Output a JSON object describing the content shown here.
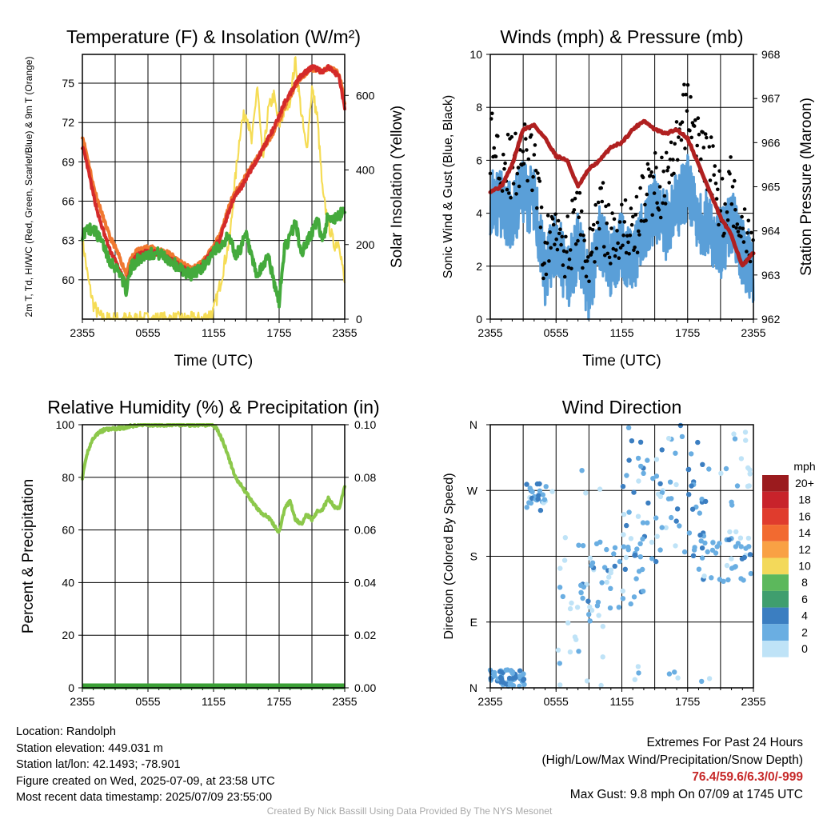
{
  "colors": {
    "red": "#d42a2a",
    "orange": "#f07830",
    "green": "#44aa3c",
    "yellow": "#f5dc55",
    "blue": "#5a9fd8",
    "black": "#000000",
    "maroon": "#b02020",
    "rh": "#8cc84b",
    "precip": "#3aa035"
  },
  "chart_data": [
    {
      "id": "temperature",
      "type": "line",
      "title": "Temperature (F) & Insolation (W/m²)",
      "xlabel": "Time (UTC)",
      "ylabel": "2m T, Td, HI/WC (Red, Green, Scarlet/Blue) & 9m T (Orange)",
      "ylabel_right": "Solar Insolation (Yellow)",
      "xticks": [
        "2355",
        "0555",
        "1155",
        "1755",
        "2355"
      ],
      "ylim": [
        57,
        77.2
      ],
      "yticks": [
        60,
        63,
        66,
        69,
        72,
        75
      ],
      "ylim_right": [
        0,
        710
      ],
      "yticks_right": [
        0,
        200,
        400,
        600
      ],
      "x_hours": [
        0,
        0.5,
        1,
        1.5,
        2,
        2.5,
        3,
        3.5,
        4,
        4.5,
        5,
        6,
        7,
        8,
        9,
        10,
        11,
        12,
        12.5,
        13,
        13.5,
        14,
        14.5,
        15,
        15.5,
        16,
        16.5,
        17,
        17.5,
        18,
        18.5,
        19,
        19.5,
        20,
        20.5,
        21,
        21.5,
        22,
        22.5,
        23,
        23.5,
        24
      ],
      "series": [
        {
          "key": "temp_2m",
          "color": "red",
          "values": [
            70.2,
            68.5,
            66.5,
            64.8,
            63.5,
            62.3,
            61.5,
            60.5,
            59.6,
            61.2,
            61.8,
            62.2,
            62.0,
            61.7,
            61.0,
            60.6,
            61.2,
            62.3,
            63.0,
            64.2,
            65.5,
            66.5,
            67.0,
            67.8,
            68.5,
            69.2,
            70.0,
            70.8,
            71.5,
            72.5,
            73.5,
            74.2,
            75.0,
            75.6,
            75.9,
            76.2,
            76.1,
            75.8,
            76.2,
            75.9,
            75.5,
            73.0
          ]
        },
        {
          "key": "temp_9m",
          "color": "orange",
          "values": [
            71.0,
            69.2,
            67.2,
            65.8,
            64.5,
            63.3,
            62.5,
            61.5,
            60.5,
            61.7,
            62.2,
            62.5,
            62.3,
            62.0,
            61.3,
            60.8,
            61.4,
            62.5,
            63.3,
            64.5,
            65.8,
            66.8,
            67.2,
            68.0,
            68.7,
            69.3,
            70.0,
            70.6,
            71.3,
            72.2,
            73.2,
            74.0,
            74.8,
            75.4,
            75.8,
            76.1,
            76.0,
            75.9,
            76.2,
            76.0,
            75.7,
            73.5
          ]
        },
        {
          "key": "dewpoint",
          "color": "green",
          "values": [
            63.5,
            63.8,
            64.0,
            63.2,
            62.5,
            61.5,
            61.0,
            60.5,
            59.2,
            61.0,
            61.5,
            62.0,
            62.0,
            61.5,
            60.8,
            60.4,
            61.0,
            62.0,
            62.6,
            63.0,
            63.3,
            61.8,
            62.5,
            63.4,
            61.5,
            60.2,
            61.0,
            62.0,
            59.8,
            58.3,
            62.5,
            63.2,
            64.5,
            62.0,
            62.8,
            63.6,
            64.5,
            63.0,
            65.0,
            64.6,
            64.8,
            65.5
          ]
        },
        {
          "key": "insolation",
          "color": "yellow",
          "axis": "right",
          "values": [
            220,
            110,
            40,
            10,
            0,
            0,
            0,
            0,
            0,
            0,
            0,
            0,
            0,
            0,
            0,
            0,
            0,
            20,
            80,
            150,
            220,
            380,
            520,
            560,
            470,
            630,
            420,
            560,
            600,
            520,
            560,
            590,
            695,
            560,
            450,
            620,
            540,
            330,
            260,
            200,
            210,
            90
          ]
        }
      ]
    },
    {
      "id": "winds",
      "type": "line",
      "title": "Winds (mph) & Pressure (mb)",
      "xlabel": "Time (UTC)",
      "ylabel": "Sonic Wind & Gust (Blue, Black)",
      "ylabel_right": "Station Pressure (Maroon)",
      "xticks": [
        "2355",
        "0555",
        "1155",
        "1755",
        "2355"
      ],
      "ylim": [
        0,
        10
      ],
      "yticks": [
        0,
        2,
        4,
        6,
        8,
        10
      ],
      "ylim_right": [
        962,
        968
      ],
      "yticks_right": [
        962,
        963,
        964,
        965,
        966,
        967,
        968
      ],
      "x_hours": [
        0,
        1,
        2,
        3,
        4,
        5,
        6,
        7,
        8,
        9,
        10,
        11,
        12,
        13,
        14,
        15,
        16,
        17,
        18,
        19,
        20,
        21,
        22,
        23,
        24
      ],
      "series": [
        {
          "key": "wind",
          "color": "blue",
          "values": [
            4.5,
            4.3,
            3.8,
            4.7,
            4.4,
            1.8,
            3.0,
            1.5,
            2.8,
            1.0,
            3.2,
            2.0,
            2.8,
            2.0,
            3.5,
            4.2,
            3.5,
            4.2,
            5.0,
            3.8,
            3.5,
            2.8,
            3.7,
            2.5,
            1.8
          ]
        },
        {
          "key": "gust",
          "color": "black",
          "values": [
            6.8,
            6.2,
            5.6,
            6.3,
            5.8,
            2.2,
            4.0,
            2.6,
            3.9,
            2.0,
            4.4,
            2.8,
            3.8,
            3.1,
            4.6,
            5.2,
            5.0,
            6.2,
            8.2,
            6.5,
            6.0,
            4.2,
            5.0,
            3.5,
            2.8
          ]
        },
        {
          "key": "pressure",
          "color": "maroon",
          "axis": "right",
          "values": [
            964.9,
            965.0,
            965.5,
            966.3,
            966.4,
            966.1,
            965.7,
            965.6,
            965.0,
            965.4,
            965.6,
            965.9,
            966.0,
            966.3,
            966.5,
            966.3,
            966.2,
            966.3,
            966.1,
            965.5,
            964.9,
            964.3,
            963.9,
            963.2,
            963.5
          ]
        }
      ]
    },
    {
      "id": "humidity",
      "type": "line",
      "title": "Relative Humidity (%) & Precipitation (in)",
      "ylabel": "Percent & Precipitation",
      "xticks": [
        "2355",
        "0555",
        "1155",
        "1755",
        "2355"
      ],
      "ylim": [
        0,
        100
      ],
      "yticks": [
        0,
        20,
        40,
        60,
        80,
        100
      ],
      "ylim_right": [
        0,
        0.1
      ],
      "yticks_right": [
        "0.00",
        "0.02",
        "0.04",
        "0.06",
        "0.08",
        "0.10"
      ],
      "x_hours": [
        0,
        0.5,
        1,
        1.5,
        2,
        3,
        4,
        5,
        6,
        7,
        8,
        9,
        10,
        11,
        12,
        12.5,
        13,
        13.5,
        14,
        14.5,
        15,
        15.5,
        16,
        16.5,
        17,
        17.5,
        18,
        18.5,
        19,
        19.5,
        20,
        20.5,
        21,
        21.5,
        22,
        22.5,
        23,
        23.5,
        24
      ],
      "series": [
        {
          "key": "rh",
          "color": "rh",
          "values": [
            80,
            90,
            95,
            97,
            98,
            98.5,
            99,
            100,
            100,
            100,
            100,
            100,
            100,
            100,
            100,
            97,
            92,
            86,
            80,
            77,
            74,
            71,
            68,
            66,
            65,
            62,
            59,
            68,
            71,
            64,
            62,
            66,
            64,
            67,
            68,
            72,
            69,
            68,
            77
          ]
        },
        {
          "key": "precip",
          "color": "precip",
          "axis": "right",
          "values": [
            0,
            0,
            0,
            0,
            0,
            0,
            0,
            0,
            0,
            0,
            0,
            0,
            0,
            0,
            0,
            0,
            0,
            0,
            0,
            0,
            0,
            0,
            0,
            0,
            0,
            0,
            0,
            0,
            0,
            0,
            0,
            0,
            0,
            0,
            0,
            0,
            0,
            0,
            0
          ]
        }
      ]
    },
    {
      "id": "wind_direction",
      "type": "scatter",
      "title": "Wind Direction",
      "ylabel": "Direction (Colored By Speed)",
      "xticks": [
        "2355",
        "0555",
        "1155",
        "1755",
        "2355"
      ],
      "yticks": [
        "N",
        "E",
        "S",
        "W",
        "N"
      ],
      "ylim": [
        0,
        360
      ],
      "legend_title": "mph",
      "legend_labels": [
        "20+",
        "18",
        "16",
        "14",
        "12",
        "10",
        "8",
        "6",
        "4",
        "2",
        "0"
      ],
      "legend_colors": [
        "#9b1b1e",
        "#c8232b",
        "#e03c2d",
        "#f26a30",
        "#f9a144",
        "#f3d95a",
        "#5cb85c",
        "#3f9e6e",
        "#3b7ec1",
        "#6aaee2",
        "#bfe3f7"
      ],
      "clusters": [
        {
          "hours": [
            0,
            3.2
          ],
          "dir": [
            2,
            25
          ],
          "speed": [
            2,
            5.5
          ],
          "count": 55
        },
        {
          "hours": [
            3.3,
            5.2
          ],
          "dir": [
            240,
            280
          ],
          "speed": [
            1,
            5
          ],
          "count": 25
        },
        {
          "hours": [
            5.5,
            10.5
          ],
          "dir": [
            0,
            300
          ],
          "speed": [
            0,
            3
          ],
          "count": 30
        },
        {
          "hours": [
            8,
            14
          ],
          "dir": [
            100,
            200
          ],
          "speed": [
            1,
            5
          ],
          "count": 50
        },
        {
          "hours": [
            12,
            20
          ],
          "dir": [
            170,
            360
          ],
          "speed": [
            1,
            6
          ],
          "count": 80
        },
        {
          "hours": [
            19,
            24
          ],
          "dir": [
            140,
            220
          ],
          "speed": [
            1,
            5
          ],
          "count": 45
        },
        {
          "hours": [
            21,
            24
          ],
          "dir": [
            250,
            350
          ],
          "speed": [
            0,
            3
          ],
          "count": 15
        },
        {
          "hours": [
            11,
            20
          ],
          "dir": [
            0,
            30
          ],
          "speed": [
            0,
            4
          ],
          "count": 8
        }
      ]
    }
  ],
  "footer": {
    "location": "Location: Randolph",
    "elevation": "Station elevation: 449.031 m",
    "latlon": "Station lat/lon: 42.1493; -78.901",
    "created": "Figure created on Wed, 2025-07-09, at 23:58 UTC",
    "recent": "Most recent data timestamp: 2025/07/09 23:55:00",
    "extremes_title": "Extremes For Past 24 Hours",
    "extremes_sub": "(High/Low/Max Wind/Precipitation/Snow Depth)",
    "extremes_values": "76.4/59.6/6.3/0/-999",
    "max_gust": "Max Gust: 9.8 mph On 07/09 at 1745 UTC",
    "credit": "Created By Nick Bassill Using Data Provided By The NYS Mesonet"
  }
}
